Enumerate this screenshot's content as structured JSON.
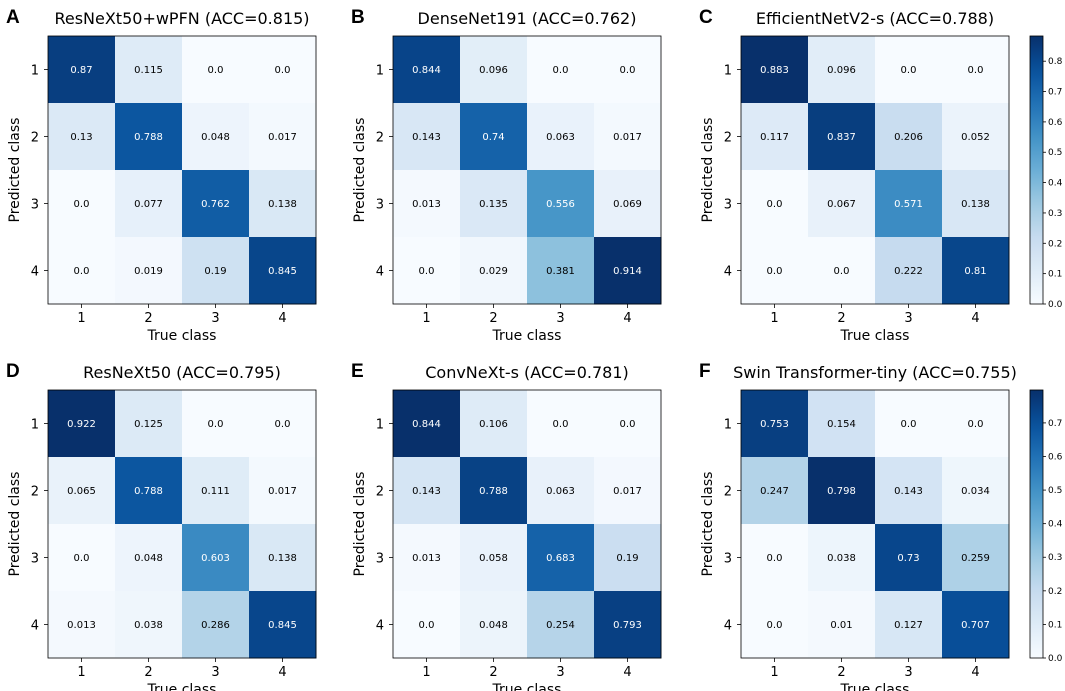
{
  "chart_data": [
    {
      "type": "heatmap",
      "panel": "A",
      "title": "ResNeXt50+wPFN (ACC=0.815)",
      "xlabel": "True class",
      "ylabel": "Predicted class",
      "x_categories": [
        "1",
        "2",
        "3",
        "4"
      ],
      "y_categories": [
        "1",
        "2",
        "3",
        "4"
      ],
      "values": [
        [
          0.87,
          0.115,
          0.0,
          0.0
        ],
        [
          0.13,
          0.788,
          0.048,
          0.017
        ],
        [
          0.0,
          0.077,
          0.762,
          0.138
        ],
        [
          0.0,
          0.019,
          0.19,
          0.845
        ]
      ],
      "value_labels": [
        [
          "0.87",
          "0.115",
          "0.0",
          "0.0"
        ],
        [
          "0.13",
          "0.788",
          "0.048",
          "0.017"
        ],
        [
          "0.0",
          "0.077",
          "0.762",
          "0.138"
        ],
        [
          "0.0",
          "0.019",
          "0.19",
          "0.845"
        ]
      ],
      "vmax": 0.92
    },
    {
      "type": "heatmap",
      "panel": "B",
      "title": "DenseNet191 (ACC=0.762)",
      "xlabel": "True class",
      "ylabel": "Predicted class",
      "x_categories": [
        "1",
        "2",
        "3",
        "4"
      ],
      "y_categories": [
        "1",
        "2",
        "3",
        "4"
      ],
      "values": [
        [
          0.844,
          0.096,
          0.0,
          0.0
        ],
        [
          0.143,
          0.74,
          0.063,
          0.017
        ],
        [
          0.013,
          0.135,
          0.556,
          0.069
        ],
        [
          0.0,
          0.029,
          0.381,
          0.914
        ]
      ],
      "value_labels": [
        [
          "0.844",
          "0.096",
          "0.0",
          "0.0"
        ],
        [
          "0.143",
          "0.74",
          "0.063",
          "0.017"
        ],
        [
          "0.013",
          "0.135",
          "0.556",
          "0.069"
        ],
        [
          "0.0",
          "0.029",
          "0.381",
          "0.914"
        ]
      ],
      "vmax": 0.914
    },
    {
      "type": "heatmap",
      "panel": "C",
      "title": "EfficientNetV2-s (ACC=0.788)",
      "xlabel": "True class",
      "ylabel": "Predicted class",
      "x_categories": [
        "1",
        "2",
        "3",
        "4"
      ],
      "y_categories": [
        "1",
        "2",
        "3",
        "4"
      ],
      "values": [
        [
          0.883,
          0.096,
          0.0,
          0.0
        ],
        [
          0.117,
          0.837,
          0.206,
          0.052
        ],
        [
          0.0,
          0.067,
          0.571,
          0.138
        ],
        [
          0.0,
          0.0,
          0.222,
          0.81
        ]
      ],
      "value_labels": [
        [
          "0.883",
          "0.096",
          "0.0",
          "0.0"
        ],
        [
          "0.117",
          "0.837",
          "0.206",
          "0.052"
        ],
        [
          "0.0",
          "0.067",
          "0.571",
          "0.138"
        ],
        [
          "0.0",
          "0.0",
          "0.222",
          "0.81"
        ]
      ],
      "vmax": 0.883,
      "colorbar": {
        "ticks": [
          "0.0",
          "0.1",
          "0.2",
          "0.3",
          "0.4",
          "0.5",
          "0.6",
          "0.7",
          "0.8"
        ],
        "tick_values": [
          0,
          0.1,
          0.2,
          0.3,
          0.4,
          0.5,
          0.6,
          0.7,
          0.8
        ],
        "range": [
          0.0,
          0.883
        ]
      }
    },
    {
      "type": "heatmap",
      "panel": "D",
      "title": "ResNeXt50 (ACC=0.795)",
      "xlabel": "True class",
      "ylabel": "Predicted class",
      "x_categories": [
        "1",
        "2",
        "3",
        "4"
      ],
      "y_categories": [
        "1",
        "2",
        "3",
        "4"
      ],
      "values": [
        [
          0.922,
          0.125,
          0.0,
          0.0
        ],
        [
          0.065,
          0.788,
          0.111,
          0.017
        ],
        [
          0.0,
          0.048,
          0.603,
          0.138
        ],
        [
          0.013,
          0.038,
          0.286,
          0.845
        ]
      ],
      "value_labels": [
        [
          "0.922",
          "0.125",
          "0.0",
          "0.0"
        ],
        [
          "0.065",
          "0.788",
          "0.111",
          "0.017"
        ],
        [
          "0.0",
          "0.048",
          "0.603",
          "0.138"
        ],
        [
          "0.013",
          "0.038",
          "0.286",
          "0.845"
        ]
      ],
      "vmax": 0.922
    },
    {
      "type": "heatmap",
      "panel": "E",
      "title": "ConvNeXt-s (ACC=0.781)",
      "xlabel": "True class",
      "ylabel": "Predicted class",
      "x_categories": [
        "1",
        "2",
        "3",
        "4"
      ],
      "y_categories": [
        "1",
        "2",
        "3",
        "4"
      ],
      "values": [
        [
          0.844,
          0.106,
          0.0,
          0.0
        ],
        [
          0.143,
          0.788,
          0.063,
          0.017
        ],
        [
          0.013,
          0.058,
          0.683,
          0.19
        ],
        [
          0.0,
          0.048,
          0.254,
          0.793
        ]
      ],
      "value_labels": [
        [
          "0.844",
          "0.106",
          "0.0",
          "0.0"
        ],
        [
          "0.143",
          "0.788",
          "0.063",
          "0.017"
        ],
        [
          "0.013",
          "0.058",
          "0.683",
          "0.19"
        ],
        [
          "0.0",
          "0.048",
          "0.254",
          "0.793"
        ]
      ],
      "vmax": 0.844
    },
    {
      "type": "heatmap",
      "panel": "F",
      "title": "Swin Transformer-tiny (ACC=0.755)",
      "xlabel": "True class",
      "ylabel": "Predicted class",
      "x_categories": [
        "1",
        "2",
        "3",
        "4"
      ],
      "y_categories": [
        "1",
        "2",
        "3",
        "4"
      ],
      "values": [
        [
          0.753,
          0.154,
          0.0,
          0.0
        ],
        [
          0.247,
          0.798,
          0.143,
          0.034
        ],
        [
          0.0,
          0.038,
          0.73,
          0.259
        ],
        [
          0.0,
          0.01,
          0.127,
          0.707
        ]
      ],
      "value_labels": [
        [
          "0.753",
          "0.154",
          "0.0",
          "0.0"
        ],
        [
          "0.247",
          "0.798",
          "0.143",
          "0.034"
        ],
        [
          "0.0",
          "0.038",
          "0.73",
          "0.259"
        ],
        [
          "0.0",
          "0.01",
          "0.127",
          "0.707"
        ]
      ],
      "vmax": 0.798,
      "colorbar": {
        "ticks": [
          "0.0",
          "0.1",
          "0.2",
          "0.3",
          "0.4",
          "0.5",
          "0.6",
          "0.7"
        ],
        "tick_values": [
          0,
          0.1,
          0.2,
          0.3,
          0.4,
          0.5,
          0.6,
          0.7
        ],
        "range": [
          0.0,
          0.798
        ]
      }
    }
  ],
  "colormap": {
    "name": "Blues",
    "stops": [
      "#f7fbff",
      "#deebf7",
      "#c6dbef",
      "#9ecae1",
      "#6baed6",
      "#4292c6",
      "#2171b5",
      "#08519c",
      "#08306b"
    ],
    "light_text": "#ffffff",
    "dark_text": "#000000"
  }
}
